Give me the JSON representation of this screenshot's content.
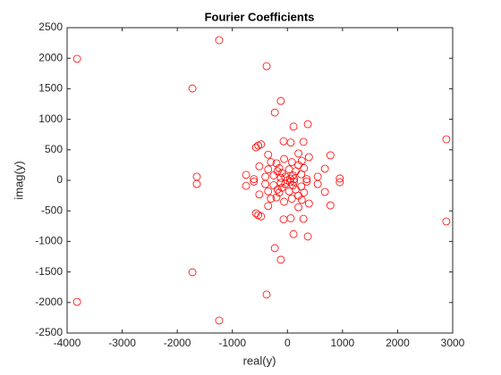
{
  "chart_data": {
    "type": "scatter",
    "title": "Fourier Coefficients",
    "x_label": "real(y)",
    "y_label": "imag(y)",
    "color": "#ff0000",
    "x": [
      -3820,
      -1240,
      -1725,
      -378,
      2885,
      -1645,
      -120,
      -230,
      110,
      370,
      950,
      780,
      680,
      -570,
      -530,
      -480,
      -750,
      -610,
      -510,
      -350,
      -70,
      60,
      290,
      390,
      200,
      50,
      -40,
      100,
      -100,
      150,
      -150,
      200,
      -200,
      80,
      -60,
      250,
      -250,
      300,
      30,
      120,
      -120,
      -180,
      260,
      -300,
      550,
      -350,
      -400,
      350,
      -3820,
      -1240,
      -1725,
      -378,
      2885,
      -1645,
      -120,
      -230,
      110,
      370,
      950,
      780,
      680,
      -570,
      -530,
      -480,
      -750,
      -610,
      -510,
      -350,
      -70,
      60,
      290,
      390,
      200,
      50,
      -40,
      100,
      -100,
      150,
      -150,
      200,
      -200,
      80,
      -60,
      250,
      -250,
      300,
      30,
      120,
      -120,
      -180,
      260,
      -300,
      550,
      -350,
      -400,
      350,
      0
    ],
    "y": [
      1990,
      2295,
      1505,
      1870,
      672,
      60,
      1300,
      1110,
      880,
      920,
      30,
      410,
      190,
      540,
      570,
      590,
      90,
      20,
      230,
      420,
      640,
      620,
      630,
      380,
      440,
      30,
      60,
      80,
      120,
      150,
      200,
      250,
      280,
      300,
      350,
      100,
      80,
      200,
      180,
      20,
      40,
      150,
      320,
      300,
      60,
      180,
      60,
      20,
      -1990,
      -2295,
      -1505,
      -1870,
      -672,
      -60,
      -1300,
      -1110,
      -880,
      -920,
      -30,
      -410,
      -190,
      -540,
      -570,
      -590,
      -90,
      -20,
      -230,
      -420,
      -640,
      -620,
      -630,
      -380,
      -440,
      -30,
      -60,
      -80,
      -120,
      -150,
      -200,
      -250,
      -280,
      -300,
      -350,
      -100,
      -80,
      -200,
      -180,
      -20,
      -40,
      -150,
      -320,
      -300,
      -60,
      -180,
      -60,
      -20,
      0
    ],
    "xlim": [
      -4000,
      3000
    ],
    "ylim": [
      -2500,
      2500
    ],
    "xticks": [
      -4000,
      -3000,
      -2000,
      -1000,
      0,
      1000,
      2000,
      3000
    ],
    "yticks": [
      -2500,
      -2000,
      -1500,
      -1000,
      -500,
      0,
      500,
      1000,
      1500,
      2000,
      2500
    ]
  }
}
